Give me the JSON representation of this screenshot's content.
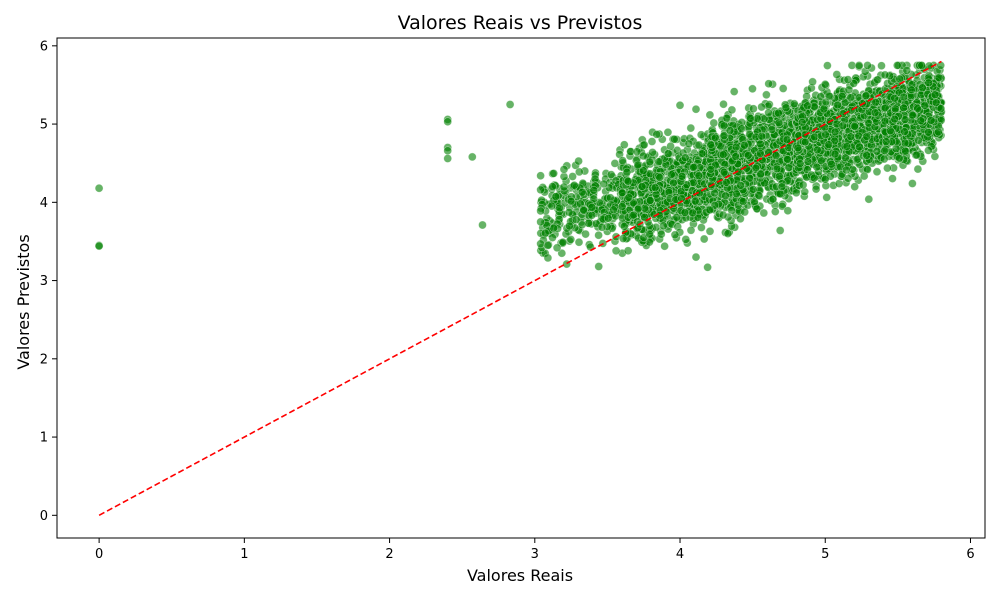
{
  "chart_data": {
    "type": "scatter",
    "title": "Valores Reais vs Previstos",
    "xlabel": "Valores Reais",
    "ylabel": "Valores Previstos",
    "xlim": [
      -0.29,
      6.1
    ],
    "ylim": [
      -0.29,
      6.1
    ],
    "xticks": [
      "0",
      "1",
      "2",
      "3",
      "4",
      "5",
      "6"
    ],
    "yticks": [
      "0",
      "1",
      "2",
      "3",
      "4",
      "5",
      "6"
    ],
    "grid": false,
    "point_color": "#008000",
    "point_opacity": 0.6,
    "reference_line": {
      "from": [
        0,
        0
      ],
      "to": [
        5.8,
        5.8
      ],
      "color": "#ff0000",
      "style": "dashed"
    },
    "outliers": [
      {
        "x": 0.0,
        "y": 4.18
      },
      {
        "x": 0.0,
        "y": 3.45
      },
      {
        "x": 0.0,
        "y": 3.44
      },
      {
        "x": 2.4,
        "y": 5.06
      },
      {
        "x": 2.4,
        "y": 5.03
      },
      {
        "x": 2.4,
        "y": 4.7
      },
      {
        "x": 2.4,
        "y": 4.66
      },
      {
        "x": 2.4,
        "y": 4.56
      },
      {
        "x": 2.57,
        "y": 4.58
      },
      {
        "x": 2.64,
        "y": 3.71
      },
      {
        "x": 2.83,
        "y": 5.25
      },
      {
        "x": 3.04,
        "y": 4.34
      },
      {
        "x": 3.04,
        "y": 4.16
      },
      {
        "x": 3.04,
        "y": 3.89
      },
      {
        "x": 3.04,
        "y": 3.75
      },
      {
        "x": 3.04,
        "y": 3.47
      },
      {
        "x": 3.09,
        "y": 3.29
      },
      {
        "x": 3.09,
        "y": 3.45
      },
      {
        "x": 3.13,
        "y": 4.37
      },
      {
        "x": 3.13,
        "y": 3.67
      },
      {
        "x": 3.22,
        "y": 3.21
      },
      {
        "x": 3.26,
        "y": 4.33
      },
      {
        "x": 3.44,
        "y": 3.18
      },
      {
        "x": 3.56,
        "y": 3.38
      },
      {
        "x": 4.11,
        "y": 3.3
      },
      {
        "x": 4.19,
        "y": 3.17
      },
      {
        "x": 4.0,
        "y": 5.24
      },
      {
        "x": 4.11,
        "y": 5.19
      },
      {
        "x": 4.33,
        "y": 3.6
      },
      {
        "x": 4.69,
        "y": 3.64
      },
      {
        "x": 5.3,
        "y": 4.04
      },
      {
        "x": 5.6,
        "y": 4.24
      }
    ],
    "dense_cluster": [
      {
        "x_range": [
          3.04,
          3.6
        ],
        "y_center": 3.95,
        "spread": 0.25,
        "count": 260
      },
      {
        "x_range": [
          3.6,
          4.2
        ],
        "y_center": 4.15,
        "spread": 0.3,
        "count": 650
      },
      {
        "x_range": [
          4.2,
          4.8
        ],
        "y_center": 4.55,
        "spread": 0.32,
        "count": 900
      },
      {
        "x_range": [
          4.8,
          5.4
        ],
        "y_center": 4.9,
        "spread": 0.3,
        "count": 900
      },
      {
        "x_range": [
          5.4,
          5.8
        ],
        "y_center": 5.15,
        "spread": 0.28,
        "count": 650
      }
    ]
  }
}
